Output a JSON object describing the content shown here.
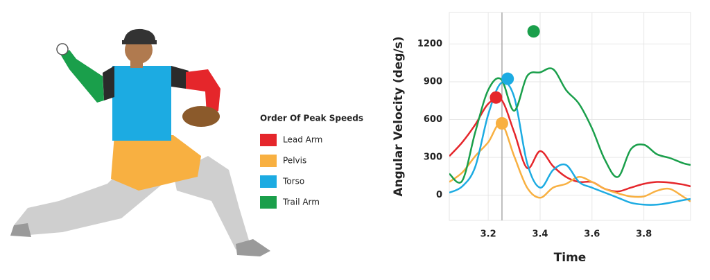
{
  "legend_title": "Order Of Peak Speeds",
  "chart_data": {
    "type": "line",
    "x_label": "Time",
    "y_label": "Angular Velocity (deg/s)",
    "x": [
      3.05,
      3.1,
      3.15,
      3.2,
      3.25,
      3.3,
      3.35,
      3.4,
      3.45,
      3.5,
      3.55,
      3.6,
      3.65,
      3.7,
      3.75,
      3.8,
      3.85,
      3.9,
      3.95,
      3.98
    ],
    "xlim": [
      3.05,
      3.98
    ],
    "ylim": [
      -200,
      1450
    ],
    "xticks": [
      3.2,
      3.4,
      3.6,
      3.8
    ],
    "yticks": [
      0,
      300,
      600,
      900,
      1200
    ],
    "grid": true,
    "marker_line_x": 3.253,
    "series": [
      {
        "name": "Lead Arm",
        "color": "#e5262b",
        "values": [
          310,
          420,
          560,
          725,
          760,
          500,
          215,
          350,
          230,
          145,
          105,
          105,
          50,
          30,
          60,
          90,
          105,
          100,
          85,
          70
        ],
        "peak_x": 3.23,
        "peak_y": 775
      },
      {
        "name": "Pelvis",
        "color": "#f8b041",
        "values": [
          105,
          180,
          310,
          420,
          570,
          310,
          60,
          -20,
          60,
          90,
          145,
          105,
          50,
          15,
          -10,
          -10,
          35,
          50,
          -10,
          -50
        ],
        "peak_x": 3.253,
        "peak_y": 570
      },
      {
        "name": "Torso",
        "color": "#1cabe2",
        "values": [
          20,
          70,
          225,
          640,
          890,
          780,
          255,
          60,
          200,
          240,
          105,
          60,
          20,
          -20,
          -60,
          -75,
          -75,
          -60,
          -40,
          -30
        ],
        "peak_x": 3.275,
        "peak_y": 924
      },
      {
        "name": "Trail Arm",
        "color": "#1a9f4b",
        "values": [
          170,
          115,
          500,
          835,
          920,
          670,
          945,
          975,
          1000,
          835,
          725,
          530,
          280,
          145,
          365,
          400,
          325,
          295,
          255,
          240
        ],
        "peak_x": 3.375,
        "peak_y": 1300
      }
    ]
  }
}
